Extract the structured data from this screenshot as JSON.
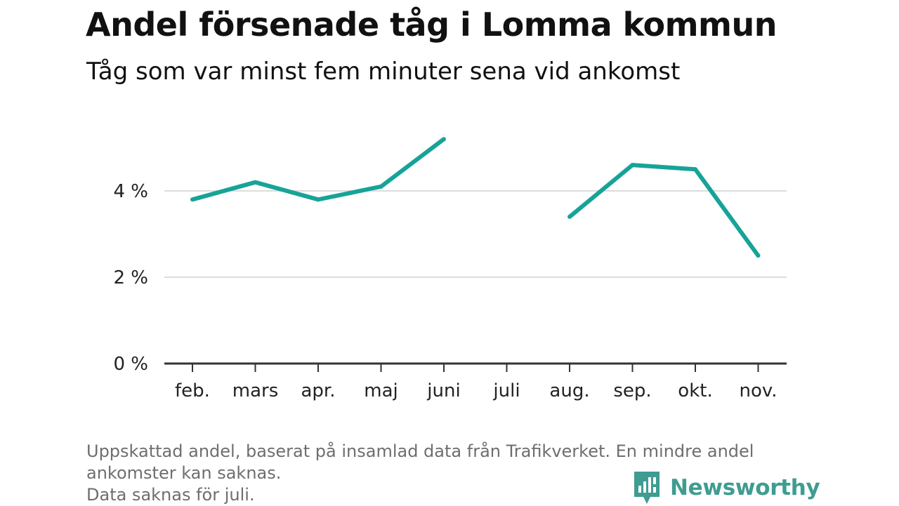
{
  "header": {
    "title": "Andel försenade tåg i Lomma kommun",
    "subtitle": "Tåg som var minst fem minuter sena vid ankomst"
  },
  "footnote": {
    "line1": "Uppskattad andel, baserat på insamlad data från Trafikverket. En mindre andel",
    "line2": "ankomster kan saknas.",
    "line3": "Data saknas för juli."
  },
  "brand": {
    "name": "Newsworthy",
    "color": "#3f9c91",
    "icon": "newsworthy-bar-chart-icon"
  },
  "chart_data": {
    "type": "line",
    "title": "Andel försenade tåg i Lomma kommun",
    "subtitle": "Tåg som var minst fem minuter sena vid ankomst",
    "xlabel": "",
    "ylabel": "",
    "categories": [
      "feb.",
      "mars",
      "apr.",
      "maj",
      "juni",
      "juli",
      "aug.",
      "sep.",
      "okt.",
      "nov."
    ],
    "series": [
      {
        "values": [
          3.8,
          4.2,
          3.8,
          4.1,
          5.2,
          null,
          3.4,
          4.6,
          4.5,
          2.5
        ],
        "color": "#17a398"
      }
    ],
    "yticks": [
      {
        "value": 0,
        "label": "0 %"
      },
      {
        "value": 2,
        "label": "2 %"
      },
      {
        "value": 4,
        "label": "4 %"
      }
    ],
    "ylim": [
      0,
      5.3
    ],
    "grid": true,
    "legend": "none"
  }
}
